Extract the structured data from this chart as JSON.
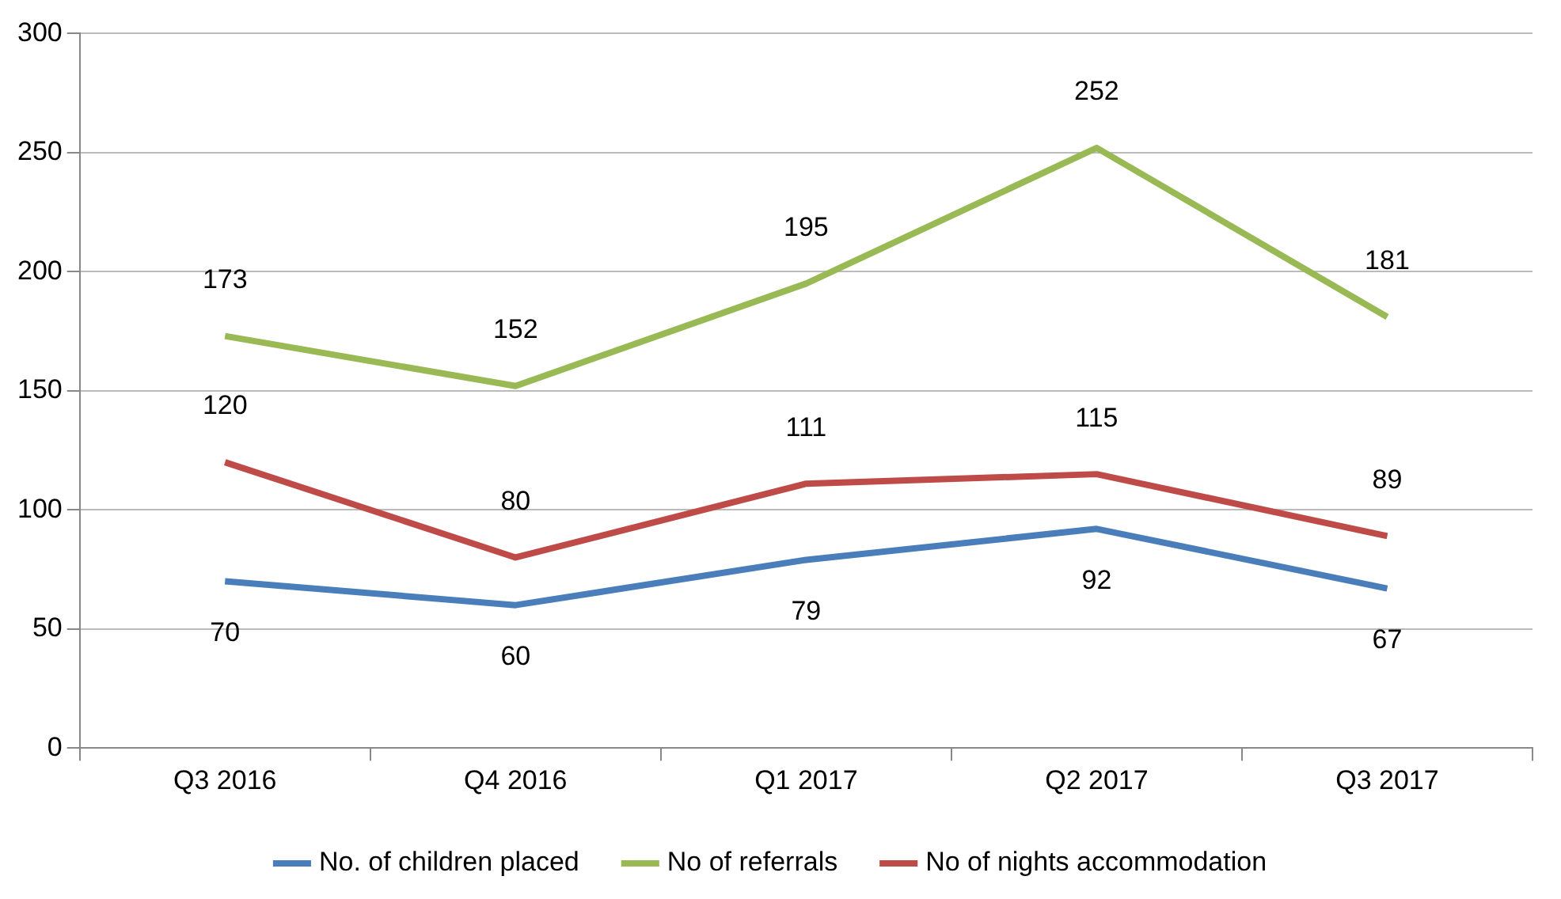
{
  "chart_data": {
    "type": "line",
    "categories": [
      "Q3 2016",
      "Q4 2016",
      "Q1 2017",
      "Q2 2017",
      "Q3 2017"
    ],
    "series": [
      {
        "name": "No. of children placed",
        "color": "#4a7ebb",
        "values": [
          70,
          60,
          79,
          92,
          67
        ]
      },
      {
        "name": "No of referrals",
        "color": "#98b954",
        "values": [
          173,
          152,
          195,
          252,
          181
        ]
      },
      {
        "name": "No of nights accommodation",
        "color": "#be4b48",
        "values": [
          120,
          80,
          111,
          115,
          89
        ]
      }
    ],
    "ylim": [
      0,
      300
    ],
    "yticks": [
      0,
      50,
      100,
      150,
      200,
      250,
      300
    ],
    "grid": "y",
    "legend": "bottom",
    "data_labels": true,
    "marker": "none",
    "line_style": "solid"
  }
}
